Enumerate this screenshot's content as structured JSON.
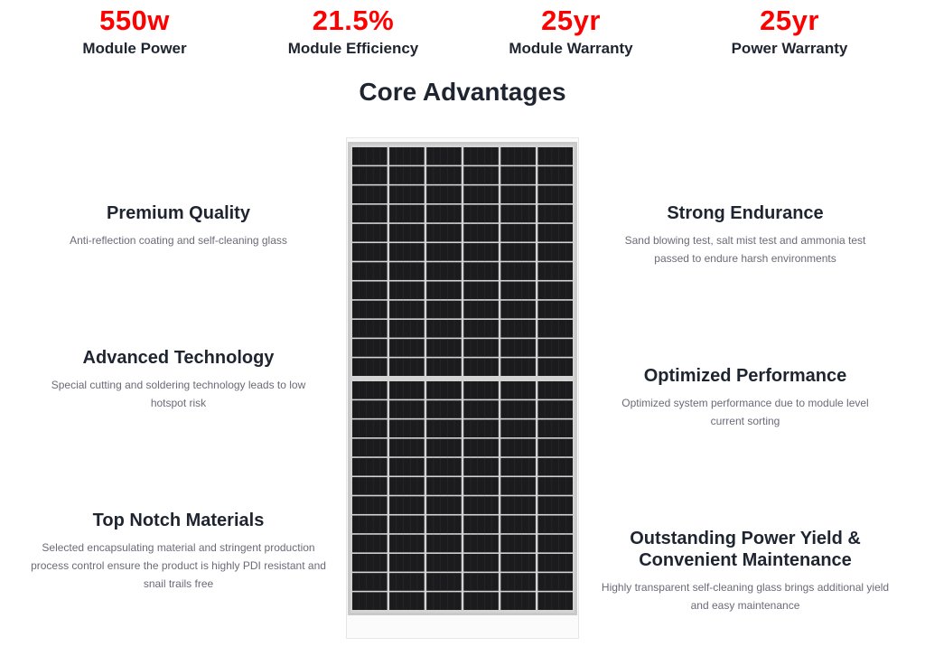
{
  "accent_color": "#ff0000",
  "stats": [
    {
      "value": "550w",
      "label": "Module Power"
    },
    {
      "value": "21.5%",
      "label": "Module Efficiency"
    },
    {
      "value": "25yr",
      "label": "Module Warranty"
    },
    {
      "value": "25yr",
      "label": "Power Warranty"
    }
  ],
  "section_title": "Core Advantages",
  "features_left": [
    {
      "title": "Premium Quality",
      "description": "Anti-reflection coating and self-cleaning glass"
    },
    {
      "title": "Advanced Technology",
      "description": "Special cutting and soldering technology leads to low hotspot risk"
    },
    {
      "title": "Top Notch Materials",
      "description": "Selected encapsulating material and stringent production process control ensure the product is highly PDI resistant and snail trails free"
    }
  ],
  "features_right": [
    {
      "title": "Strong Endurance",
      "description": "Sand blowing test, salt mist test and ammonia test passed to endure harsh environments"
    },
    {
      "title": "Optimized Performance",
      "description": "Optimized system performance due to module level current sorting"
    },
    {
      "title": "Outstanding Power Yield & Convenient Maintenance",
      "description": "Highly transparent self-cleaning glass brings additional yield and easy maintenance"
    }
  ],
  "panel_image": {
    "icon": "solar-panel-image",
    "frame_color": "#c9c9c9",
    "cell_color": "#1b1b1d"
  }
}
